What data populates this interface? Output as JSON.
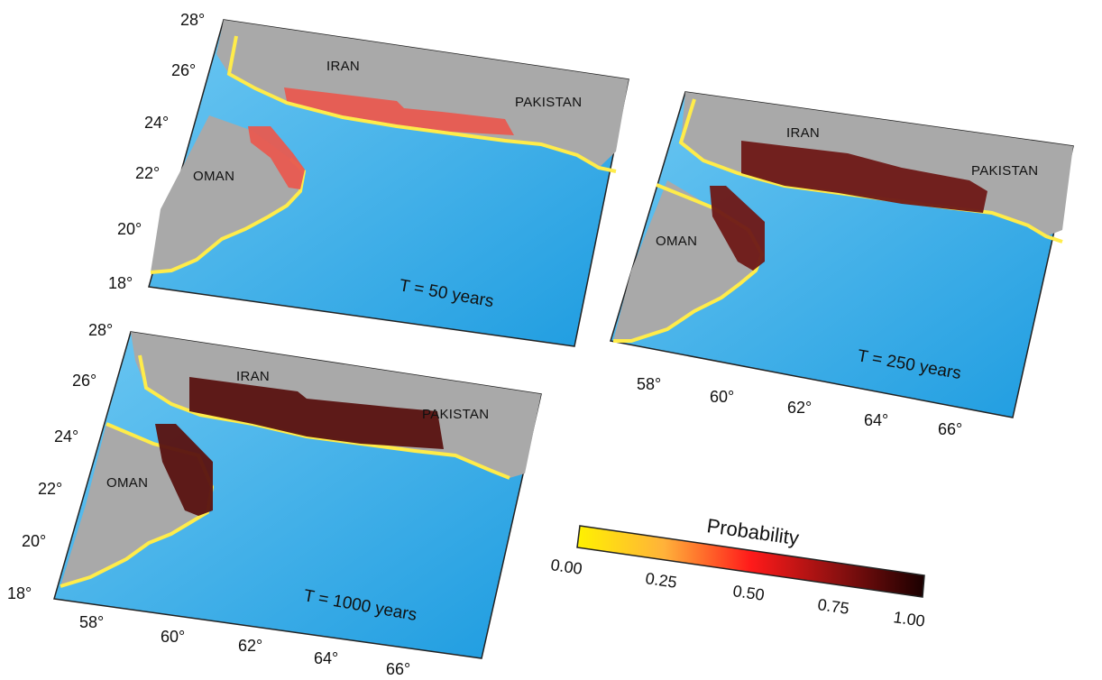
{
  "panels": [
    {
      "id": "t50",
      "caption": "T = 50 years",
      "countries": [
        "IRAN",
        "PAKISTAN",
        "OMAN"
      ],
      "lat_labels": [
        "28°",
        "26°",
        "24°",
        "22°",
        "20°",
        "18°"
      ],
      "lon_labels": []
    },
    {
      "id": "t250",
      "caption": "T = 250 years",
      "countries": [
        "IRAN",
        "PAKISTAN",
        "OMAN"
      ],
      "lat_labels": [],
      "lon_labels": [
        "58°",
        "60°",
        "62°",
        "64°",
        "66°"
      ]
    },
    {
      "id": "t1000",
      "caption": "T = 1000 years",
      "countries": [
        "IRAN",
        "PAKISTAN",
        "OMAN"
      ],
      "lat_labels": [
        "28°",
        "26°",
        "24°",
        "22°",
        "20°",
        "18°"
      ],
      "lon_labels": [
        "58°",
        "60°",
        "62°",
        "64°",
        "66°"
      ]
    }
  ],
  "colorbar": {
    "title": "Probability",
    "ticks": [
      "0.00",
      "0.25",
      "0.50",
      "0.75",
      "1.00"
    ],
    "colors": [
      "#fff200",
      "#ffb23a",
      "#ff1a1a",
      "#8c1010",
      "#1a0000"
    ]
  },
  "colors": {
    "land": "#a9a9a9",
    "sea": "#2da7e6",
    "shelf": "#9fd8f3",
    "coast": "#ffec4a"
  }
}
